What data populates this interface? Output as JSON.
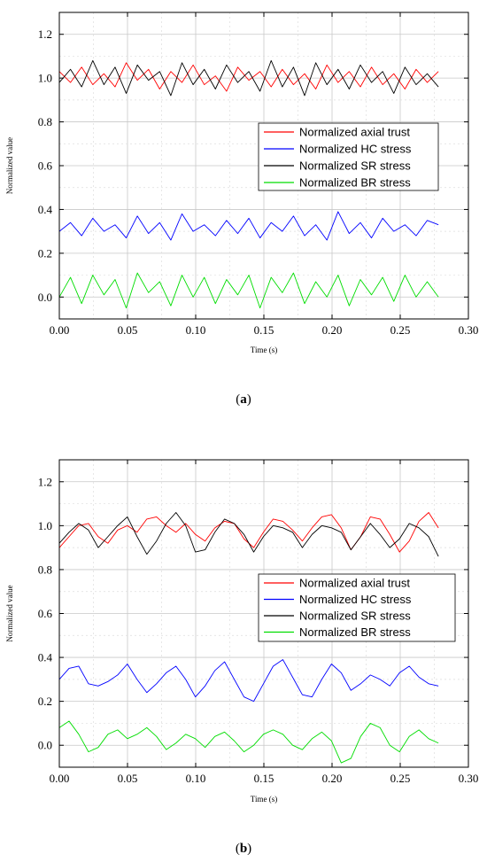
{
  "chart_data": [
    {
      "type": "line",
      "panel": "a",
      "caption_label": "a",
      "xlabel": "Time (s)",
      "ylabel": "Normalized value",
      "xlim": [
        0.0,
        0.3
      ],
      "ylim": [
        -0.1,
        1.3
      ],
      "xticks": [
        "0.00",
        "0.05",
        "0.10",
        "0.15",
        "0.20",
        "0.25",
        "0.30"
      ],
      "yticks": [
        "0.0",
        "0.2",
        "0.4",
        "0.6",
        "0.8",
        "1.0",
        "1.2"
      ],
      "grid": true,
      "legend_position": "center-right",
      "series": [
        {
          "name": "Normalized axial trust",
          "color": "#ff0000",
          "x_start": 0.0,
          "x_end": 0.278,
          "mean": 1.0,
          "amplitude": 0.04,
          "period": 0.0077,
          "values": [
            1.03,
            0.98,
            1.05,
            0.97,
            1.02,
            0.96,
            1.07,
            0.99,
            1.04,
            0.95,
            1.03,
            0.98,
            1.06,
            0.97,
            1.01,
            0.94,
            1.05,
            0.99,
            1.03,
            0.96,
            1.04,
            0.97,
            1.02,
            0.95,
            1.06,
            0.98,
            1.03,
            0.96,
            1.05,
            0.97,
            1.02,
            0.95,
            1.04,
            0.98,
            1.03
          ]
        },
        {
          "name": "Normalized HC stress",
          "color": "#0000ff",
          "x_start": 0.0,
          "x_end": 0.278,
          "mean": 0.31,
          "amplitude": 0.04,
          "period": 0.0077,
          "values": [
            0.3,
            0.34,
            0.28,
            0.36,
            0.3,
            0.33,
            0.27,
            0.37,
            0.29,
            0.34,
            0.26,
            0.38,
            0.3,
            0.33,
            0.28,
            0.35,
            0.29,
            0.36,
            0.27,
            0.34,
            0.3,
            0.37,
            0.28,
            0.33,
            0.26,
            0.39,
            0.29,
            0.34,
            0.27,
            0.36,
            0.3,
            0.33,
            0.28,
            0.35,
            0.33
          ]
        },
        {
          "name": "Normalized SR stress",
          "color": "#000000",
          "x_start": 0.0,
          "x_end": 0.278,
          "mean": 1.0,
          "amplitude": 0.05,
          "period": 0.0077,
          "values": [
            0.98,
            1.04,
            0.96,
            1.08,
            0.97,
            1.05,
            0.93,
            1.06,
            0.99,
            1.03,
            0.92,
            1.07,
            0.97,
            1.04,
            0.95,
            1.06,
            0.98,
            1.03,
            0.94,
            1.08,
            0.96,
            1.05,
            0.92,
            1.07,
            0.97,
            1.04,
            0.95,
            1.06,
            0.98,
            1.03,
            0.93,
            1.05,
            0.97,
            1.02,
            0.96
          ]
        },
        {
          "name": "Normalized BR stress",
          "color": "#00dd00",
          "x_start": 0.0,
          "x_end": 0.278,
          "mean": 0.03,
          "amplitude": 0.06,
          "period": 0.0077,
          "values": [
            0.0,
            0.09,
            -0.03,
            0.1,
            0.01,
            0.08,
            -0.05,
            0.11,
            0.02,
            0.07,
            -0.04,
            0.1,
            0.0,
            0.09,
            -0.03,
            0.08,
            0.01,
            0.1,
            -0.05,
            0.09,
            0.02,
            0.11,
            -0.03,
            0.07,
            0.0,
            0.1,
            -0.04,
            0.08,
            0.01,
            0.09,
            -0.02,
            0.1,
            0.0,
            0.07,
            0.0
          ]
        }
      ]
    },
    {
      "type": "line",
      "panel": "b",
      "caption_label": "b",
      "xlabel": "Time (s)",
      "ylabel": "Normalized value",
      "xlim": [
        0.0,
        0.3
      ],
      "ylim": [
        -0.1,
        1.3
      ],
      "xticks": [
        "0.00",
        "0.05",
        "0.10",
        "0.15",
        "0.20",
        "0.25",
        "0.30"
      ],
      "yticks": [
        "0.0",
        "0.2",
        "0.4",
        "0.6",
        "0.8",
        "1.0",
        "1.2"
      ],
      "grid": true,
      "legend_position": "center-right",
      "series": [
        {
          "name": "Normalized axial trust",
          "color": "#ff0000",
          "x_start": 0.0,
          "x_end": 0.278,
          "mean": 0.98,
          "amplitude": 0.07,
          "period": 0.034,
          "values": [
            0.9,
            0.95,
            1.0,
            1.01,
            0.95,
            0.92,
            0.98,
            1.0,
            0.97,
            1.03,
            1.04,
            1.0,
            0.97,
            1.01,
            0.96,
            0.93,
            0.99,
            1.02,
            1.01,
            0.94,
            0.9,
            0.97,
            1.03,
            1.02,
            0.98,
            0.93,
            0.99,
            1.04,
            1.05,
            0.99,
            0.89,
            0.95,
            1.04,
            1.03,
            0.96,
            0.88,
            0.93,
            1.02,
            1.06,
            0.99
          ]
        },
        {
          "name": "Normalized HC stress",
          "color": "#0000ff",
          "x_start": 0.0,
          "x_end": 0.278,
          "mean": 0.29,
          "amplitude": 0.07,
          "period": 0.034,
          "values": [
            0.3,
            0.35,
            0.36,
            0.28,
            0.27,
            0.29,
            0.32,
            0.37,
            0.3,
            0.24,
            0.28,
            0.33,
            0.36,
            0.3,
            0.22,
            0.27,
            0.34,
            0.38,
            0.3,
            0.22,
            0.2,
            0.28,
            0.36,
            0.39,
            0.31,
            0.23,
            0.22,
            0.3,
            0.37,
            0.33,
            0.25,
            0.28,
            0.32,
            0.3,
            0.27,
            0.33,
            0.36,
            0.31,
            0.28,
            0.27
          ]
        },
        {
          "name": "Normalized SR stress",
          "color": "#000000",
          "x_start": 0.0,
          "x_end": 0.278,
          "mean": 0.97,
          "amplitude": 0.07,
          "period": 0.034,
          "values": [
            0.92,
            0.97,
            1.01,
            0.98,
            0.9,
            0.95,
            1.0,
            1.04,
            0.95,
            0.87,
            0.93,
            1.01,
            1.06,
            1.0,
            0.88,
            0.89,
            0.97,
            1.03,
            1.01,
            0.96,
            0.88,
            0.95,
            1.0,
            0.99,
            0.97,
            0.9,
            0.96,
            1.0,
            0.99,
            0.97,
            0.89,
            0.95,
            1.01,
            0.96,
            0.9,
            0.94,
            1.01,
            0.99,
            0.95,
            0.86
          ]
        },
        {
          "name": "Normalized BR stress",
          "color": "#00dd00",
          "x_start": 0.0,
          "x_end": 0.278,
          "mean": 0.03,
          "amplitude": 0.06,
          "period": 0.034,
          "values": [
            0.08,
            0.11,
            0.05,
            -0.03,
            -0.01,
            0.05,
            0.07,
            0.03,
            0.05,
            0.08,
            0.04,
            -0.02,
            0.01,
            0.05,
            0.03,
            -0.01,
            0.04,
            0.06,
            0.02,
            -0.03,
            0.0,
            0.05,
            0.07,
            0.05,
            0.0,
            -0.02,
            0.03,
            0.06,
            0.02,
            -0.08,
            -0.06,
            0.04,
            0.1,
            0.08,
            0.0,
            -0.03,
            0.04,
            0.07,
            0.03,
            0.01
          ]
        }
      ]
    }
  ]
}
